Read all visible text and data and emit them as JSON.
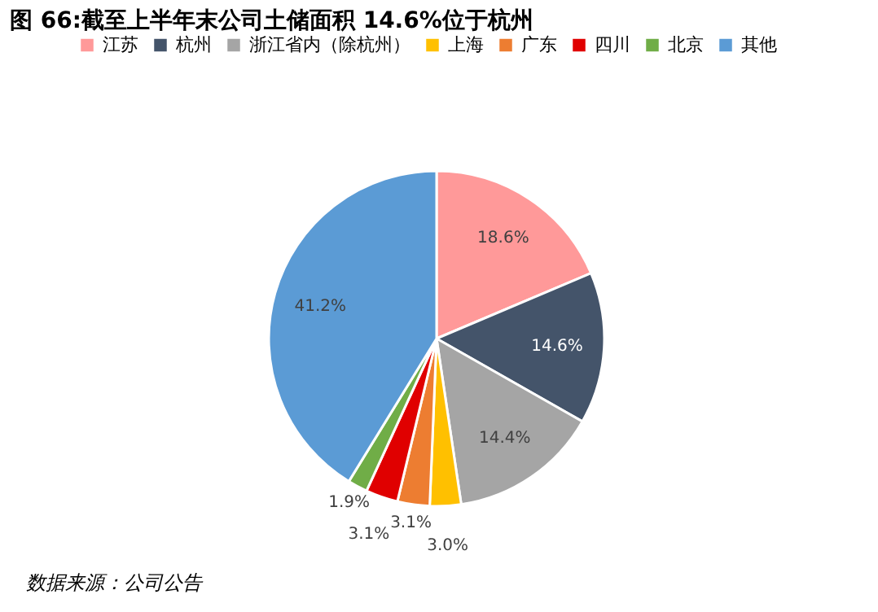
{
  "chart_data": {
    "type": "pie",
    "title": "图 66:截至上半年末公司土储面积 14.6%位于杭州",
    "categories": [
      "江苏",
      "杭州",
      "浙江省内（除杭州）",
      "上海",
      "广东",
      "四川",
      "北京",
      "其他"
    ],
    "values": [
      18.6,
      14.6,
      14.4,
      3.0,
      3.1,
      3.1,
      1.9,
      41.2
    ],
    "colors": [
      "#ff9999",
      "#44546a",
      "#a5a5a5",
      "#ffc000",
      "#ed7d31",
      "#e00000",
      "#70ad47",
      "#5b9bd5"
    ],
    "value_labels": [
      "18.6%",
      "14.6%",
      "14.4%",
      "3.0%",
      "3.1%",
      "3.1%",
      "1.9%",
      "41.2%"
    ],
    "legend": "top",
    "annotations": [
      "数据来源：公司公告"
    ]
  }
}
